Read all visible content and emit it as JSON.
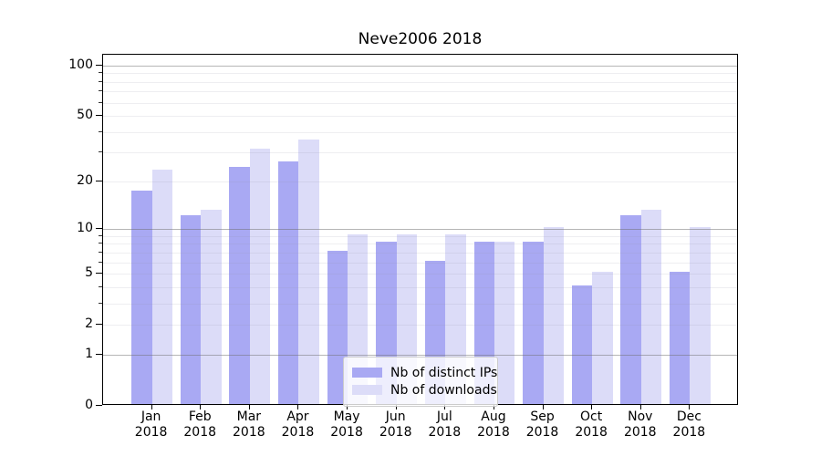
{
  "figure": {
    "background": "#ffffff"
  },
  "chart_data": {
    "type": "bar",
    "title": "Neve2006 2018",
    "categories": [
      "Jan",
      "Feb",
      "Mar",
      "Apr",
      "May",
      "Jun",
      "Jul",
      "Aug",
      "Sep",
      "Oct",
      "Nov",
      "Dec"
    ],
    "year": "2018",
    "series": [
      {
        "name": "Nb of distinct IPs",
        "color": "#a9a9f3",
        "values": [
          17,
          12,
          24,
          26,
          7,
          8,
          6,
          8,
          8,
          4,
          12,
          5
        ]
      },
      {
        "name": "Nb of downloads",
        "color": "#dcdcf8",
        "values": [
          23,
          13,
          31,
          35,
          9,
          9,
          9,
          8,
          10,
          5,
          13,
          10
        ]
      }
    ],
    "xlabel": "",
    "ylabel": "",
    "yscale": "log1p",
    "ylim": [
      0,
      116
    ],
    "yticks": [
      0,
      1,
      2,
      5,
      10,
      20,
      50,
      100
    ],
    "gridlines_major": [
      1,
      10,
      100
    ],
    "gridlines_minor": [
      2,
      3,
      4,
      5,
      6,
      7,
      8,
      9,
      20,
      30,
      40,
      50,
      60,
      70,
      80,
      90
    ],
    "grid": "on",
    "legend_position": "lower center"
  }
}
